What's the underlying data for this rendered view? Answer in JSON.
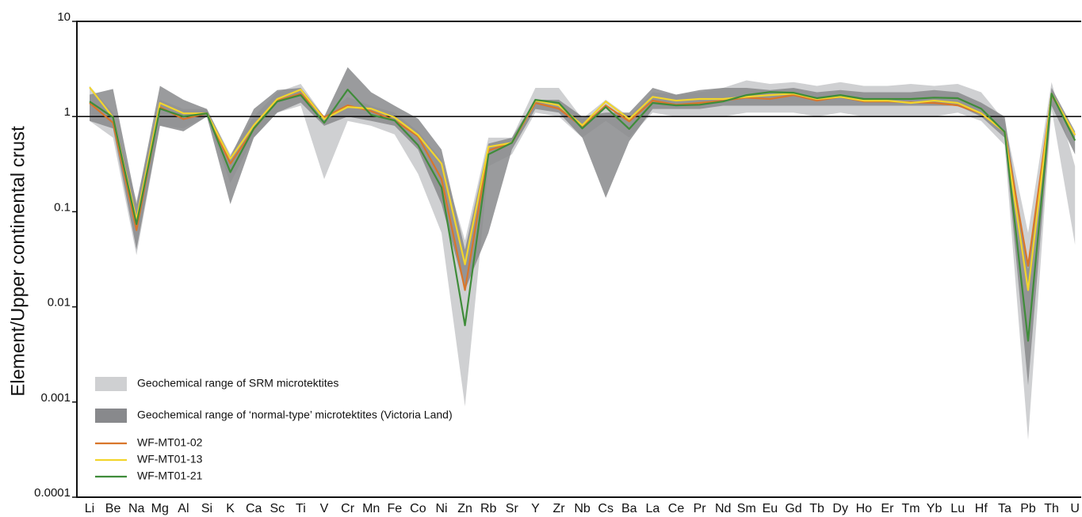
{
  "chart_data": {
    "type": "line",
    "y_label": "Element/Upper continental crust",
    "log_scale": true,
    "categories": [
      "Li",
      "Be",
      "Na",
      "Mg",
      "Al",
      "Si",
      "K",
      "Ca",
      "Sc",
      "Ti",
      "V",
      "Cr",
      "Mn",
      "Fe",
      "Co",
      "Ni",
      "Zn",
      "Rb",
      "Sr",
      "Y",
      "Zr",
      "Nb",
      "Cs",
      "Ba",
      "La",
      "Ce",
      "Pr",
      "Nd",
      "Sm",
      "Eu",
      "Gd",
      "Tb",
      "Dy",
      "Ho",
      "Er",
      "Tm",
      "Yb",
      "Lu",
      "Hf",
      "Ta",
      "Pb",
      "Th",
      "U"
    ],
    "ylim": [
      0.0001,
      10
    ],
    "yticks": [
      0.0001,
      0.001,
      0.01,
      0.1,
      1,
      10
    ],
    "hline": 1,
    "ranges": [
      {
        "name": "Geochemical range of SRM microtektites",
        "color": "#cfd0d2",
        "lower": [
          0.9,
          0.6,
          0.035,
          0.8,
          0.75,
          1.0,
          0.2,
          0.6,
          1.1,
          1.3,
          0.22,
          0.9,
          0.8,
          0.65,
          0.25,
          0.06,
          0.0009,
          0.3,
          0.4,
          1.1,
          1.0,
          0.6,
          0.9,
          0.6,
          1.1,
          1.0,
          1.0,
          1.0,
          1.1,
          1.1,
          1.1,
          1.0,
          1.1,
          1.0,
          1.0,
          1.0,
          1.0,
          1.1,
          0.9,
          0.5,
          0.0004,
          1.2,
          0.045
        ],
        "upper": [
          2.1,
          1.1,
          0.13,
          1.5,
          1.2,
          1.2,
          0.4,
          1.0,
          1.8,
          2.2,
          1.0,
          1.6,
          1.3,
          1.1,
          0.7,
          0.35,
          0.05,
          0.6,
          0.6,
          2.0,
          2.0,
          0.95,
          1.5,
          1.0,
          1.8,
          1.7,
          1.8,
          2.0,
          2.4,
          2.2,
          2.3,
          2.1,
          2.3,
          2.1,
          2.1,
          2.2,
          2.1,
          2.2,
          1.8,
          0.9,
          0.06,
          2.3,
          0.3
        ]
      },
      {
        "name": "Geochemical range of ‘normal-type’ microtektites (Victoria Land)",
        "color": "#88898c",
        "lower": [
          0.9,
          0.75,
          0.04,
          0.8,
          0.7,
          1.0,
          0.12,
          0.6,
          1.1,
          1.4,
          0.8,
          1.0,
          0.9,
          0.8,
          0.45,
          0.12,
          0.015,
          0.06,
          0.45,
          1.2,
          1.1,
          0.6,
          0.14,
          0.55,
          1.2,
          1.2,
          1.2,
          1.3,
          1.3,
          1.3,
          1.3,
          1.3,
          1.3,
          1.3,
          1.3,
          1.3,
          1.3,
          1.3,
          1.0,
          0.6,
          0.0015,
          1.3,
          0.4
        ],
        "upper": [
          1.7,
          1.95,
          0.12,
          2.1,
          1.5,
          1.2,
          0.38,
          1.2,
          1.9,
          2.0,
          1.0,
          3.3,
          1.8,
          1.3,
          0.95,
          0.45,
          0.04,
          0.52,
          0.6,
          1.5,
          1.5,
          1.0,
          1.1,
          1.1,
          2.0,
          1.7,
          1.9,
          2.0,
          2.0,
          1.9,
          2.0,
          1.8,
          1.9,
          1.8,
          1.8,
          1.8,
          1.9,
          1.8,
          1.4,
          1.0,
          0.025,
          2.0,
          0.7
        ]
      }
    ],
    "series": [
      {
        "name": "WF-MT01-02",
        "color": "#d9762b",
        "values": [
          1.39,
          0.86,
          0.064,
          1.26,
          0.94,
          1.08,
          0.32,
          0.74,
          1.47,
          1.74,
          0.98,
          1.31,
          1.14,
          0.91,
          0.62,
          0.22,
          0.015,
          0.44,
          0.53,
          1.39,
          1.21,
          0.78,
          1.31,
          0.89,
          1.47,
          1.33,
          1.39,
          1.47,
          1.58,
          1.53,
          1.68,
          1.47,
          1.61,
          1.44,
          1.44,
          1.41,
          1.39,
          1.31,
          1.08,
          0.69,
          0.027,
          1.68,
          0.64
        ]
      },
      {
        "name": "WF-MT01-13",
        "color": "#f2d52c",
        "values": [
          2.03,
          0.98,
          0.082,
          1.39,
          1.08,
          1.08,
          0.36,
          0.81,
          1.53,
          1.92,
          0.94,
          1.26,
          1.21,
          0.98,
          0.64,
          0.32,
          0.028,
          0.48,
          0.53,
          1.47,
          1.31,
          0.81,
          1.44,
          0.94,
          1.61,
          1.47,
          1.53,
          1.53,
          1.61,
          1.68,
          1.74,
          1.53,
          1.61,
          1.47,
          1.47,
          1.39,
          1.47,
          1.39,
          1.08,
          0.69,
          0.015,
          1.74,
          0.64
        ]
      },
      {
        "name": "WF-MT01-21",
        "color": "#3f8c3a",
        "values": [
          1.44,
          0.98,
          0.074,
          1.21,
          1.0,
          1.08,
          0.26,
          0.75,
          1.44,
          1.68,
          0.86,
          1.92,
          1.04,
          0.91,
          0.5,
          0.18,
          0.0064,
          0.4,
          0.53,
          1.5,
          1.39,
          0.75,
          1.26,
          0.74,
          1.39,
          1.31,
          1.33,
          1.44,
          1.68,
          1.81,
          1.78,
          1.56,
          1.68,
          1.53,
          1.53,
          1.53,
          1.58,
          1.56,
          1.21,
          0.69,
          0.0044,
          1.74,
          0.56
        ]
      }
    ]
  }
}
